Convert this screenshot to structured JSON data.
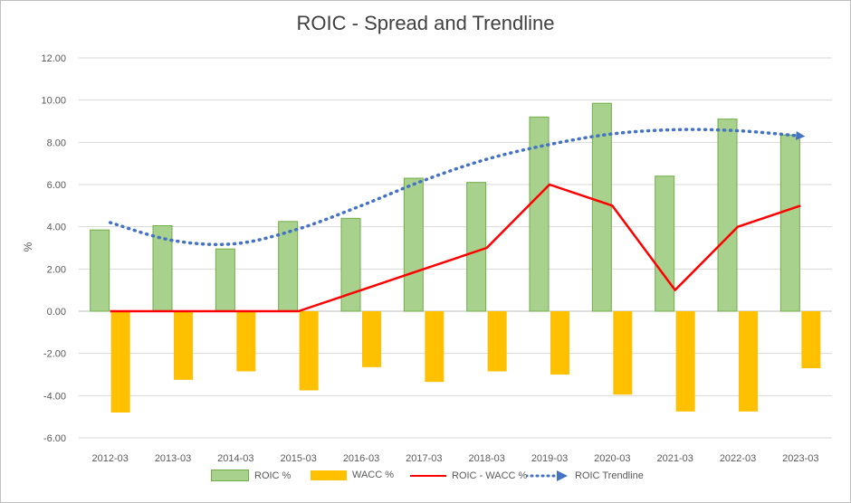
{
  "chart_data": {
    "type": "bar",
    "title": "ROIC - Spread and Trendline",
    "ylabel": "%",
    "xlabel": "",
    "ylim": [
      -6,
      12
    ],
    "yticks": [
      "12.00",
      "10.00",
      "8.00",
      "6.00",
      "4.00",
      "2.00",
      "0.00",
      "-2.00",
      "-4.00",
      "-6.00"
    ],
    "ytick_values": [
      12,
      10,
      8,
      6,
      4,
      2,
      0,
      -2,
      -4,
      -6
    ],
    "categories": [
      "2012-03",
      "2013-03",
      "2014-03",
      "2015-03",
      "2016-03",
      "2017-03",
      "2018-03",
      "2019-03",
      "2020-03",
      "2021-03",
      "2022-03",
      "2023-03"
    ],
    "grid": true,
    "legend_position": "bottom",
    "series": [
      {
        "name": "ROIC %",
        "kind": "bar",
        "color": "#a9d18e",
        "edge": "#70ad47",
        "values": [
          3.85,
          4.05,
          2.95,
          4.25,
          4.4,
          6.3,
          6.1,
          9.2,
          9.85,
          6.4,
          9.1,
          8.35
        ]
      },
      {
        "name": "WACC %",
        "kind": "bar",
        "color": "#ffc000",
        "values": [
          -4.8,
          -3.25,
          -2.85,
          -3.75,
          -2.65,
          -3.35,
          -2.85,
          -3.0,
          -3.95,
          -4.75,
          -4.75,
          -2.7
        ]
      },
      {
        "name": "ROIC - WACC %",
        "kind": "line",
        "color": "#ff0000",
        "values": [
          0,
          0,
          0,
          0,
          1.0,
          2.0,
          3.0,
          6.0,
          5.0,
          1.0,
          4.0,
          5.0
        ]
      },
      {
        "name": "ROIC Trendline",
        "kind": "trend",
        "color": "#4472c4",
        "values": [
          4.2,
          3.35,
          3.2,
          3.9,
          5.0,
          6.2,
          7.2,
          7.9,
          8.4,
          8.6,
          8.55,
          8.3
        ]
      }
    ]
  }
}
